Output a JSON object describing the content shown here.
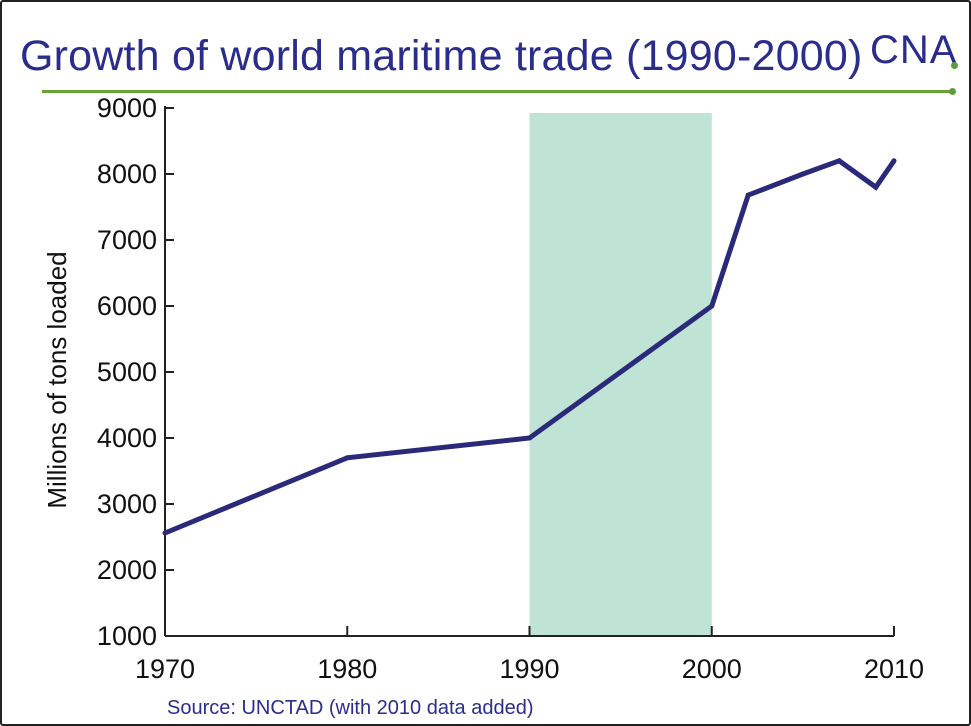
{
  "slide": {
    "title": "Growth of world maritime trade (1990-2000)",
    "logo": "CNA",
    "source": "Source: UNCTAD (with 2010 data added)"
  },
  "colors": {
    "title": "#2b2d8c",
    "line": "#2b2a7a",
    "highlight": "#bfe3d5",
    "rule": "#6aa33a"
  },
  "chart_data": {
    "type": "line",
    "title": "Growth of world maritime trade (1990-2000)",
    "xlabel": "",
    "ylabel": "Millions of tons loaded",
    "xlim": [
      1970,
      2010
    ],
    "ylim": [
      1000,
      9000
    ],
    "xticks": [
      1970,
      1980,
      1990,
      2000,
      2010
    ],
    "yticks": [
      1000,
      2000,
      3000,
      4000,
      5000,
      6000,
      7000,
      8000,
      9000
    ],
    "grid": false,
    "highlight_band": {
      "x_start": 1990,
      "x_end": 2000
    },
    "series": [
      {
        "x": [
          1970,
          1980,
          1990,
          2000,
          2002,
          2005,
          2007,
          2009,
          2010
        ],
        "y": [
          2560,
          3700,
          4000,
          6000,
          7680,
          8000,
          8200,
          7800,
          8200
        ]
      }
    ]
  }
}
